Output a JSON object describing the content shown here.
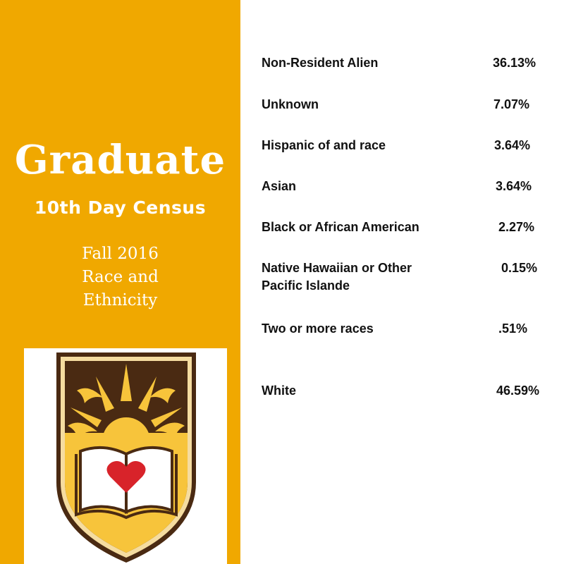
{
  "title": "Graduate",
  "census": "10th Day Census",
  "subtitle_lines": [
    "Fall 2016",
    "Race and",
    "Ethnicity"
  ],
  "colors": {
    "gold": "#f0a800",
    "brown": "#4a2a12",
    "red": "#d8232a"
  },
  "logo": {
    "icon": "university-shield-crest-icon"
  },
  "rows": [
    {
      "label": "Non-Resident Alien",
      "value": "36.13%"
    },
    {
      "label": "Unknown",
      "value": "7.07%"
    },
    {
      "label": "Hispanic of and race",
      "value": "3.64%"
    },
    {
      "label": "Asian",
      "value": "3.64%"
    },
    {
      "label": "Black or African American",
      "value": "2.27%"
    },
    {
      "label_lines": [
        "Native Hawaiian or Other",
        "Pacific Islande"
      ],
      "value": "0.15%"
    },
    {
      "label": "Two or more races",
      "value": ".51%"
    },
    {
      "label": "White",
      "value": "46.59%"
    }
  ]
}
